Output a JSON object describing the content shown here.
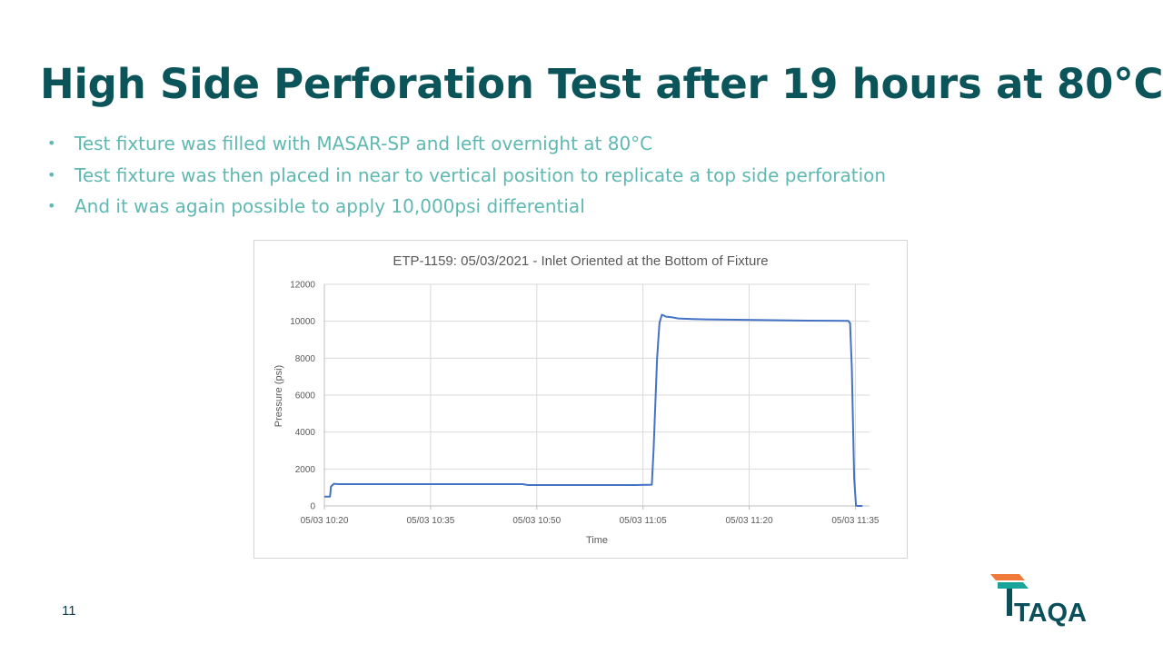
{
  "slide": {
    "title": "High Side Perforation Test after 19 hours at 80°C",
    "bullets": [
      "Test fixture was filled with MASAR-SP and left overnight at 80°C",
      "Test fixture was then placed in near to vertical position to replicate a top side perforation",
      "And it was again possible to apply 10,000psi differential"
    ],
    "page_number": "11",
    "logo_text": "TAQA",
    "colors": {
      "title": "#0b5459",
      "bullet_text": "#5fb8b1",
      "logo_orange": "#f07a3a",
      "logo_teal": "#1aa59a",
      "logo_dark": "#0b4f5a"
    }
  },
  "chart_data": {
    "type": "line",
    "title": "ETP-1159: 05/03/2021 - Inlet Oriented at the Bottom of Fixture",
    "xlabel": "Time",
    "ylabel": "Pressure (psi)",
    "xlim": [
      "10:20",
      "11:37"
    ],
    "ylim": [
      0,
      12000
    ],
    "y_ticks": [
      "0",
      "2000",
      "4000",
      "6000",
      "8000",
      "10000",
      "12000"
    ],
    "x_ticks": [
      "05/03 10:20",
      "05/03 10:35",
      "05/03 10:50",
      "05/03 11:05",
      "05/03 11:20",
      "05/03 11:35"
    ],
    "grid": true,
    "legend": "none",
    "series_color": "#4472c4",
    "series": [
      {
        "x": [
          "10:20",
          "10:20:48",
          "10:20:56",
          "10:21:20",
          "10:22",
          "10:40",
          "10:48",
          "10:48:45",
          "10:55",
          "11:04",
          "11:06:15",
          "11:06:30",
          "11:07",
          "11:07:20",
          "11:07:40",
          "11:08",
          "11:08:15",
          "11:09",
          "11:10",
          "11:12",
          "11:14",
          "11:18",
          "11:22",
          "11:27",
          "11:32",
          "11:34",
          "11:34:15",
          "11:34:30",
          "11:34:40",
          "11:34:50",
          "11:35:05",
          "11:35:20",
          "11:36"
        ],
        "y": [
          500,
          500,
          1050,
          1200,
          1180,
          1180,
          1180,
          1130,
          1130,
          1130,
          1150,
          3000,
          8000,
          9900,
          10350,
          10300,
          10250,
          10220,
          10150,
          10120,
          10100,
          10080,
          10060,
          10040,
          10030,
          10020,
          9900,
          7500,
          4500,
          1500,
          20,
          0,
          0
        ]
      }
    ]
  }
}
